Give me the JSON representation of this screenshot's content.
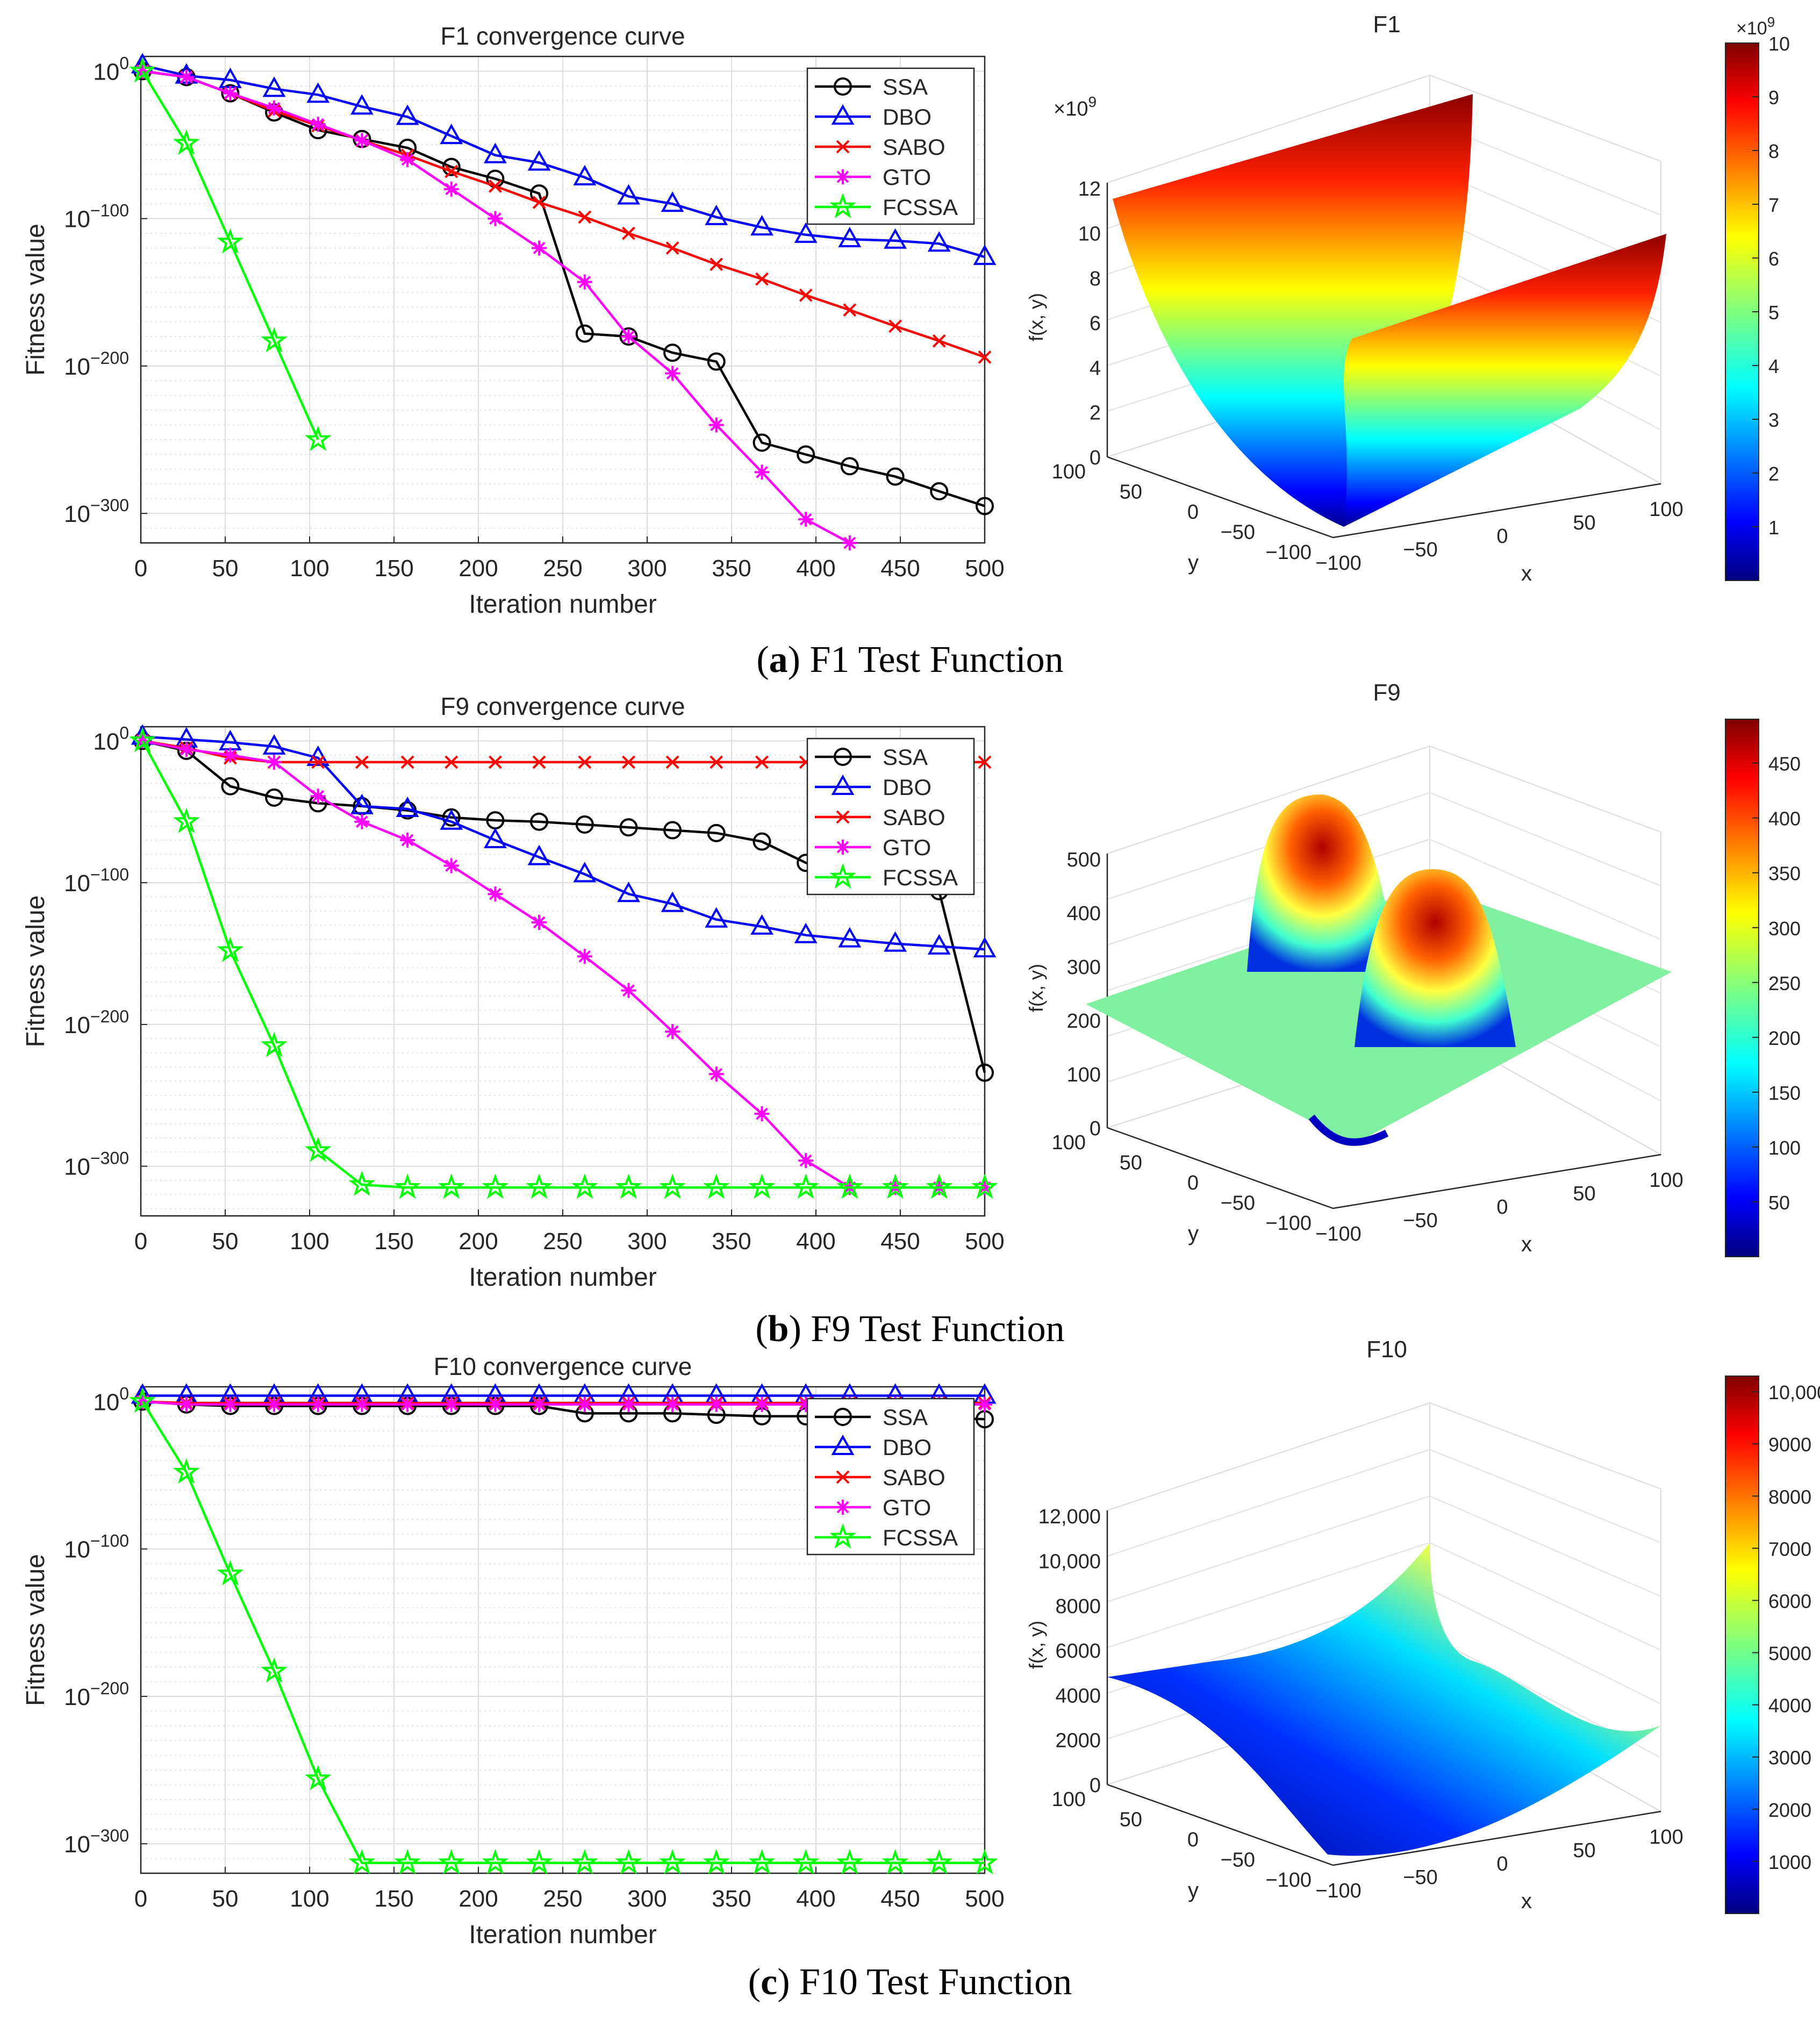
{
  "captions": [
    {
      "letter": "a",
      "text": " F1 Test Function"
    },
    {
      "letter": "b",
      "text": " F9 Test Function"
    },
    {
      "letter": "c",
      "text": " F10 Test Function"
    }
  ],
  "chart_data": [
    {
      "type": "line",
      "title": "F1 convergence curve",
      "xlabel": "Iteration number",
      "ylabel": "Fitness value",
      "xlim": [
        0,
        500
      ],
      "ylim_log10": [
        -320,
        10
      ],
      "x_ticks": [
        "0",
        "50",
        "100",
        "150",
        "200",
        "250",
        "300",
        "350",
        "400",
        "450",
        "500"
      ],
      "y_ticks": [
        {
          "exp": "0",
          "value": 0
        },
        {
          "exp": "−100",
          "value": -100
        },
        {
          "exp": "−200",
          "value": -200
        },
        {
          "exp": "−300",
          "value": -300
        }
      ],
      "grid": true,
      "legend_position": "top-right",
      "series": [
        {
          "name": "SSA",
          "color": "#000000",
          "marker": "circle",
          "x": [
            1,
            27,
            53,
            79,
            105,
            131,
            158,
            184,
            210,
            236,
            263,
            289,
            315,
            341,
            368,
            394,
            420,
            447,
            473,
            500
          ],
          "log10_y": [
            0,
            -4,
            -15,
            -28,
            -40,
            -46,
            -52,
            -65,
            -73,
            -83,
            -178,
            -180,
            -191,
            -197,
            -252,
            -260,
            -268,
            -275,
            -285,
            -295
          ]
        },
        {
          "name": "DBO",
          "color": "#0000ff",
          "marker": "triangle",
          "x": [
            1,
            27,
            53,
            79,
            105,
            131,
            158,
            184,
            210,
            236,
            263,
            289,
            315,
            341,
            368,
            394,
            420,
            447,
            473,
            500
          ],
          "log10_y": [
            4,
            -3,
            -6,
            -12,
            -16,
            -24,
            -31,
            -44,
            -57,
            -62,
            -72,
            -85,
            -90,
            -99,
            -106,
            -111,
            -114,
            -115,
            -117,
            -126
          ]
        },
        {
          "name": "SABO",
          "color": "#ff0000",
          "marker": "x",
          "x": [
            1,
            27,
            53,
            79,
            105,
            131,
            158,
            184,
            210,
            236,
            263,
            289,
            315,
            341,
            368,
            394,
            420,
            447,
            473,
            500
          ],
          "log10_y": [
            0,
            -4,
            -15,
            -27,
            -37,
            -47,
            -57,
            -68,
            -78,
            -89,
            -99,
            -110,
            -120,
            -131,
            -141,
            -152,
            -162,
            -173,
            -183,
            -194
          ]
        },
        {
          "name": "GTO",
          "color": "#ff00ff",
          "marker": "star",
          "x": [
            1,
            27,
            53,
            79,
            105,
            131,
            158,
            184,
            210,
            236,
            263,
            289,
            315,
            341,
            368,
            394,
            420
          ],
          "log10_y": [
            0,
            -4,
            -15,
            -25,
            -36,
            -47,
            -60,
            -80,
            -100,
            -120,
            -143,
            -180,
            -205,
            -240,
            -272,
            -304,
            -325
          ]
        },
        {
          "name": "FCSSA",
          "color": "#00ff00",
          "marker": "pentagram",
          "x": [
            1,
            27,
            53,
            79,
            105
          ],
          "log10_y": [
            0,
            -49,
            -116,
            -183,
            -250
          ]
        }
      ]
    },
    {
      "type": "line",
      "title": "F9 convergence curve",
      "xlabel": "Iteration number",
      "ylabel": "Fitness value",
      "xlim": [
        0,
        500
      ],
      "ylim_log10": [
        -335,
        10
      ],
      "x_ticks": [
        "0",
        "50",
        "100",
        "150",
        "200",
        "250",
        "300",
        "350",
        "400",
        "450",
        "500"
      ],
      "y_ticks": [
        {
          "exp": "0",
          "value": 0
        },
        {
          "exp": "−100",
          "value": -100
        },
        {
          "exp": "−200",
          "value": -200
        },
        {
          "exp": "−300",
          "value": -300
        }
      ],
      "grid": true,
      "legend_position": "top-right",
      "series": [
        {
          "name": "SSA",
          "color": "#000000",
          "marker": "circle",
          "x": [
            1,
            27,
            53,
            79,
            105,
            131,
            158,
            184,
            210,
            236,
            263,
            289,
            315,
            341,
            368,
            394,
            420,
            447,
            473,
            500
          ],
          "log10_y": [
            0,
            -7,
            -32,
            -40,
            -44,
            -46,
            -49,
            -54,
            -56,
            -57,
            -59,
            -61,
            -63,
            -65,
            -71,
            -86,
            -96,
            -102,
            -106,
            -234
          ]
        },
        {
          "name": "DBO",
          "color": "#0000ff",
          "marker": "triangle",
          "x": [
            1,
            27,
            53,
            79,
            105,
            131,
            158,
            184,
            210,
            236,
            263,
            289,
            315,
            341,
            368,
            394,
            420,
            447,
            473,
            500
          ],
          "log10_y": [
            3,
            1,
            -1,
            -4,
            -12,
            -46,
            -48,
            -57,
            -70,
            -82,
            -94,
            -108,
            -115,
            -126,
            -131,
            -137,
            -140,
            -143,
            -145,
            -147
          ]
        },
        {
          "name": "SABO",
          "color": "#ff0000",
          "marker": "x",
          "x": [
            1,
            27,
            53,
            79,
            105,
            131,
            158,
            184,
            210,
            236,
            263,
            289,
            315,
            341,
            368,
            394,
            420,
            447,
            473,
            500
          ],
          "log10_y": [
            0,
            -5,
            -12,
            -15,
            -15,
            -15,
            -15,
            -15,
            -15,
            -15,
            -15,
            -15,
            -15,
            -15,
            -15,
            -15,
            -15,
            -15,
            -15,
            -15
          ]
        },
        {
          "name": "GTO",
          "color": "#ff00ff",
          "marker": "star",
          "x": [
            1,
            27,
            53,
            79,
            105,
            131,
            158,
            184,
            210,
            236,
            263,
            289,
            315,
            341,
            368,
            394,
            420,
            447,
            473,
            500
          ],
          "log10_y": [
            0,
            -6,
            -10,
            -15,
            -39,
            -57,
            -70,
            -88,
            -108,
            -128,
            -152,
            -176,
            -205,
            -235,
            -263,
            -296,
            -315,
            -315,
            -315,
            -315
          ]
        },
        {
          "name": "FCSSA",
          "color": "#00ff00",
          "marker": "pentagram",
          "x": [
            1,
            27,
            53,
            79,
            105,
            131,
            158,
            184,
            210,
            236,
            263,
            289,
            315,
            341,
            368,
            394,
            420,
            447,
            473,
            500
          ],
          "log10_y": [
            0,
            -57,
            -148,
            -215,
            -289,
            -313,
            -315,
            -315,
            -315,
            -315,
            -315,
            -315,
            -315,
            -315,
            -315,
            -315,
            -315,
            -315,
            -315,
            -315
          ]
        }
      ]
    },
    {
      "type": "line",
      "title": "F10 convergence curve",
      "xlabel": "Iteration number",
      "ylabel": "Fitness value",
      "xlim": [
        0,
        500
      ],
      "ylim_log10": [
        -320,
        10
      ],
      "x_ticks": [
        "0",
        "50",
        "100",
        "150",
        "200",
        "250",
        "300",
        "350",
        "400",
        "450",
        "500"
      ],
      "y_ticks": [
        {
          "exp": "0",
          "value": 0
        },
        {
          "exp": "−100",
          "value": -100
        },
        {
          "exp": "−200",
          "value": -200
        },
        {
          "exp": "−300",
          "value": -300
        }
      ],
      "grid": true,
      "legend_position": "top-right",
      "series": [
        {
          "name": "SSA",
          "color": "#000000",
          "marker": "circle",
          "x": [
            1,
            27,
            53,
            79,
            105,
            131,
            158,
            184,
            210,
            236,
            263,
            289,
            315,
            341,
            368,
            394,
            420,
            447,
            473,
            500
          ],
          "log10_y": [
            0,
            -2,
            -3,
            -3,
            -3,
            -3,
            -3,
            -3,
            -3,
            -3,
            -8,
            -8,
            -8,
            -9,
            -10,
            -10,
            -10,
            -10,
            -11,
            -12
          ]
        },
        {
          "name": "DBO",
          "color": "#0000ff",
          "marker": "triangle",
          "x": [
            1,
            27,
            53,
            79,
            105,
            131,
            158,
            184,
            210,
            236,
            263,
            289,
            315,
            341,
            368,
            394,
            420,
            447,
            473,
            500
          ],
          "log10_y": [
            4,
            4,
            4,
            4,
            4,
            4,
            4,
            4,
            4,
            4,
            4,
            4,
            4,
            4,
            4,
            4,
            4,
            4,
            4,
            4
          ]
        },
        {
          "name": "SABO",
          "color": "#ff0000",
          "marker": "x",
          "x": [
            1,
            27,
            53,
            79,
            105,
            131,
            158,
            184,
            210,
            236,
            263,
            289,
            315,
            341,
            368,
            394,
            420,
            447,
            473,
            500
          ],
          "log10_y": [
            0,
            -1,
            -1,
            -1,
            -1,
            -1,
            -1,
            -1,
            -1,
            -1,
            -1,
            -1,
            -1,
            -1,
            -1,
            -1,
            -1,
            -1,
            -1,
            -1
          ]
        },
        {
          "name": "GTO",
          "color": "#ff00ff",
          "marker": "star",
          "x": [
            1,
            27,
            53,
            79,
            105,
            131,
            158,
            184,
            210,
            236,
            263,
            289,
            315,
            341,
            368,
            394,
            420,
            447,
            473,
            500
          ],
          "log10_y": [
            0,
            -2,
            -2,
            -2,
            -2,
            -2,
            -2,
            -2,
            -2,
            -2,
            -2,
            -2,
            -2,
            -2,
            -2,
            -2,
            -2,
            -2,
            -2,
            -2
          ]
        },
        {
          "name": "FCSSA",
          "color": "#00ff00",
          "marker": "pentagram",
          "x": [
            1,
            27,
            53,
            79,
            105,
            131,
            158,
            184,
            210,
            236,
            263,
            289,
            315,
            341,
            368,
            394,
            420,
            447,
            473,
            500
          ],
          "log10_y": [
            0,
            -48,
            -117,
            -183,
            -256,
            -313,
            -313,
            -313,
            -313,
            -313,
            -313,
            -313,
            -313,
            -313,
            -313,
            -313,
            -313,
            -313,
            -313,
            -313
          ]
        }
      ]
    },
    {
      "type": "surface3d",
      "title": "F1",
      "zlabel": "f(x, y)",
      "xlabel": "x",
      "ylabel": "y",
      "z_multiplier": "×10",
      "z_multiplier_exp": "9",
      "z_ticks": [
        "0",
        "2",
        "4",
        "6",
        "8",
        "10",
        "12"
      ],
      "x_ticks": [
        "−100",
        "−50",
        "0",
        "50",
        "100"
      ],
      "y_ticks": [
        "100",
        "50",
        "0",
        "−50",
        "−100"
      ],
      "colorbar": {
        "min": 0,
        "max": 10,
        "ticks": [
          "1",
          "2",
          "3",
          "4",
          "5",
          "6",
          "7",
          "8",
          "9",
          "10"
        ],
        "multiplier": "×10",
        "multiplier_exp": "9"
      }
    },
    {
      "type": "surface3d",
      "title": "F9",
      "zlabel": "f(x, y)",
      "xlabel": "x",
      "ylabel": "y",
      "z_ticks": [
        "0",
        "100",
        "200",
        "300",
        "400",
        "500"
      ],
      "x_ticks": [
        "−100",
        "−50",
        "0",
        "50",
        "100"
      ],
      "y_ticks": [
        "100",
        "50",
        "0",
        "−50",
        "−100"
      ],
      "colorbar": {
        "min": 0,
        "max": 490,
        "ticks": [
          "50",
          "100",
          "150",
          "200",
          "250",
          "300",
          "350",
          "400",
          "450"
        ]
      }
    },
    {
      "type": "surface3d",
      "title": "F10",
      "zlabel": "f(x, y)",
      "xlabel": "x",
      "ylabel": "y",
      "z_ticks": [
        "0",
        "2000",
        "4000",
        "6000",
        "8000",
        "10,000",
        "12,000"
      ],
      "x_ticks": [
        "−100",
        "−50",
        "0",
        "50",
        "100"
      ],
      "y_ticks": [
        "100",
        "50",
        "0",
        "−50",
        "−100"
      ],
      "colorbar": {
        "min": 0,
        "max": 10300,
        "ticks": [
          "1000",
          "2000",
          "3000",
          "4000",
          "5000",
          "6000",
          "7000",
          "8000",
          "9000",
          "10,000"
        ]
      }
    }
  ]
}
